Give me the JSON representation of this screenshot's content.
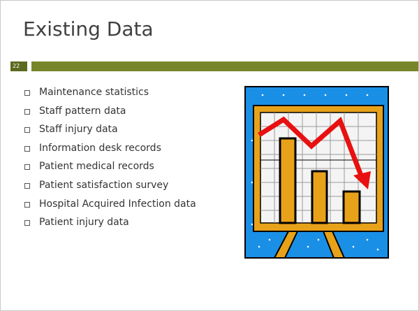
{
  "title": "Existing Data",
  "slide_number": "22",
  "bullets": [
    "Maintenance statistics",
    "Staff pattern data",
    "Staff injury data",
    "Information desk records",
    "Patient medical records",
    "Patient satisfaction survey",
    "Hospital Acquired Infection data",
    "Patient injury data"
  ]
}
